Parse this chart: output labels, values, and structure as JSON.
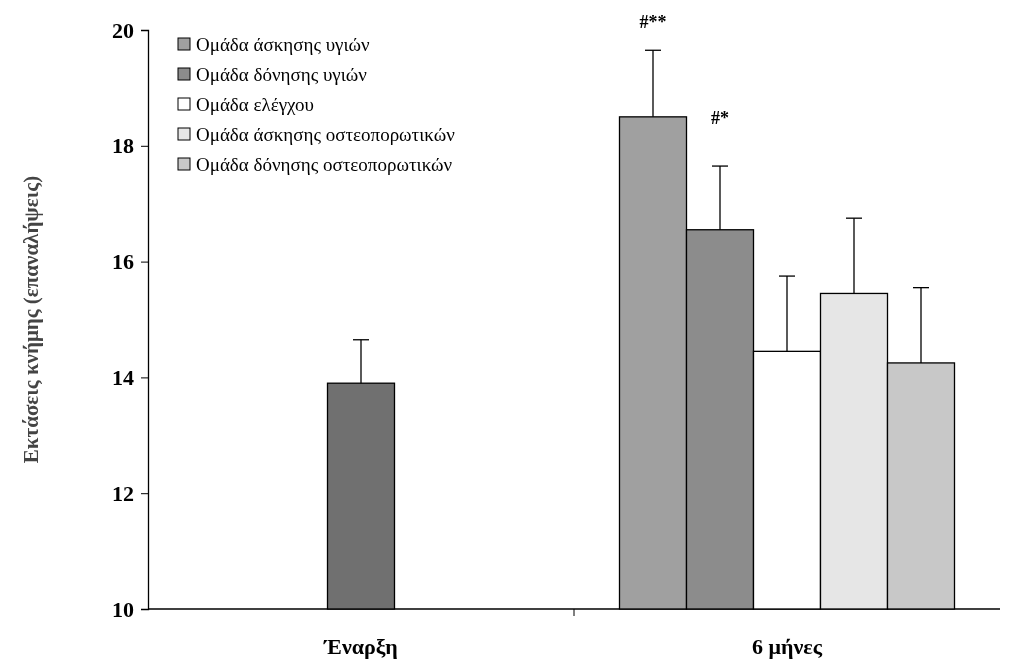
{
  "chart_data": {
    "type": "bar",
    "ylabel": "Εκτάσεις κνήμης (επαναλήψεις)",
    "categories": [
      "Έναρξη",
      "6 μήνες"
    ],
    "ylim": [
      10,
      20
    ],
    "yticks": [
      10,
      12,
      14,
      16,
      18,
      20
    ],
    "grid": false,
    "legend": "top left",
    "series": [
      {
        "color": "#707070",
        "values": [
          13.9,
          null
        ],
        "errors": [
          [
            13.9,
            14.65
          ],
          null
        ]
      },
      {
        "name": "Ομάδα άσκησης υγιών",
        "color": "#a0a0a0",
        "values": [
          null,
          18.5
        ],
        "errors": [
          null,
          [
            18.5,
            19.65
          ]
        ]
      },
      {
        "name": "Ομάδα δόνησης υγιών",
        "color": "#8c8c8c",
        "values": [
          null,
          16.55
        ],
        "errors": [
          null,
          [
            16.55,
            17.65
          ]
        ]
      },
      {
        "name": "Ομάδα ελέγχου",
        "color": "#ffffff",
        "values": [
          null,
          14.45
        ],
        "errors": [
          null,
          [
            14.45,
            15.75
          ]
        ]
      },
      {
        "name": "Ομάδα άσκησης οστεοπορωτικών",
        "color": "#e6e6e6",
        "values": [
          null,
          15.45
        ],
        "errors": [
          null,
          [
            15.45,
            16.75
          ]
        ]
      },
      {
        "name": "Ομάδα δόνησης οστεοπορωτικών",
        "color": "#c8c8c8",
        "values": [
          null,
          14.25
        ],
        "errors": [
          null,
          [
            14.25,
            15.55
          ]
        ]
      }
    ],
    "annotations": [
      "#**",
      "#*"
    ]
  }
}
